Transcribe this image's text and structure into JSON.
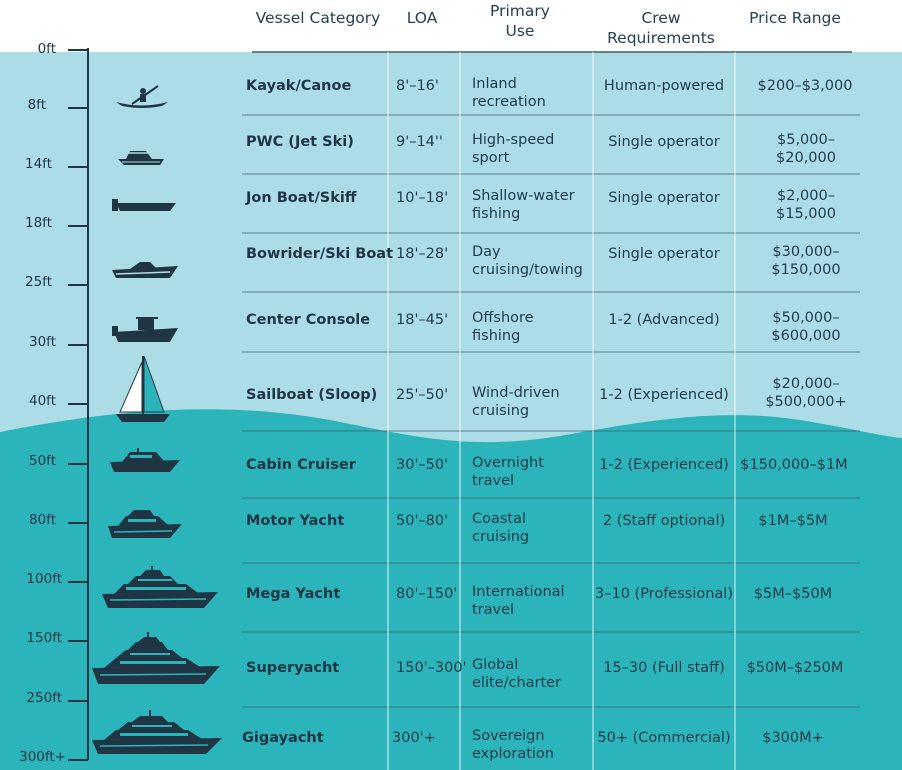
{
  "headers": {
    "vessel": "Vessel Category",
    "loa": "LOA",
    "use": "Primary Use",
    "crew": "Crew Requirements",
    "price": "Price Range"
  },
  "scale": [
    "0ft",
    "8ft",
    "14ft",
    "18ft",
    "25ft",
    "30ft",
    "40ft",
    "50ft",
    "80ft",
    "100ft",
    "150ft",
    "250ft",
    "300ft+"
  ],
  "rows": [
    {
      "name": "Kayak/Canoe",
      "loa": "8'–16'",
      "use": "Inland recreation",
      "crew": "Human-powered",
      "price": "$200–$3,000",
      "icon": "kayak-icon"
    },
    {
      "name": "PWC (Jet Ski)",
      "loa": "9'–14''",
      "use": "High-speed sport",
      "crew": "Single operator",
      "price": "$5,000–$20,000",
      "icon": "jet-ski-icon"
    },
    {
      "name": "Jon Boat/Skiff",
      "loa": "10'–18'",
      "use": "Shallow-water fishing",
      "crew": "Single operator",
      "price": "$2,000–$15,000",
      "icon": "jon-boat-icon"
    },
    {
      "name": "Bowrider/Ski Boat",
      "loa": "18'–28'",
      "use": "Day cruising/towing",
      "crew": "Single operator",
      "price": "$30,000–$150,000",
      "icon": "bowrider-icon"
    },
    {
      "name": "Center Console",
      "loa": "18'–45'",
      "use": "Offshore fishing",
      "crew": "1-2 (Advanced)",
      "price": "$50,000–$600,000",
      "icon": "center-console-icon"
    },
    {
      "name": "Sailboat (Sloop)",
      "loa": "25'–50'",
      "use": "Wind-driven cruising",
      "crew": "1-2 (Experienced)",
      "price": "$20,000–$500,000+",
      "icon": "sailboat-icon"
    },
    {
      "name": "Cabin Cruiser",
      "loa": "30'–50'",
      "use": "Overnight travel",
      "crew": "1-2 (Experienced)",
      "price": "$150,000–$1M",
      "icon": "cabin-cruiser-icon"
    },
    {
      "name": "Motor Yacht",
      "loa": "50'–80'",
      "use": "Coastal cruising",
      "crew": "2 (Staff optional)",
      "price": "$1M–$5M",
      "icon": "motor-yacht-icon"
    },
    {
      "name": "Mega Yacht",
      "loa": "80'–150'",
      "use": "International travel",
      "crew": "3–10 (Professional)",
      "price": "$5M–$50M",
      "icon": "mega-yacht-icon"
    },
    {
      "name": "Superyacht",
      "loa": "150'–300'",
      "use": "Global elite/charter",
      "crew": "15–30 (Full staff)",
      "price": "$50M–$250M",
      "icon": "superyacht-icon"
    },
    {
      "name": "Gigayacht",
      "loa": "300'+",
      "use": "Sovereign exploration",
      "crew": "50+ (Commercial)",
      "price": "$300M+",
      "icon": "gigayacht-icon"
    }
  ],
  "colors": {
    "shallow": "#acdde6",
    "deep": "#2ab5bb",
    "ink": "#1f3544",
    "line": "#3f5f6a"
  }
}
